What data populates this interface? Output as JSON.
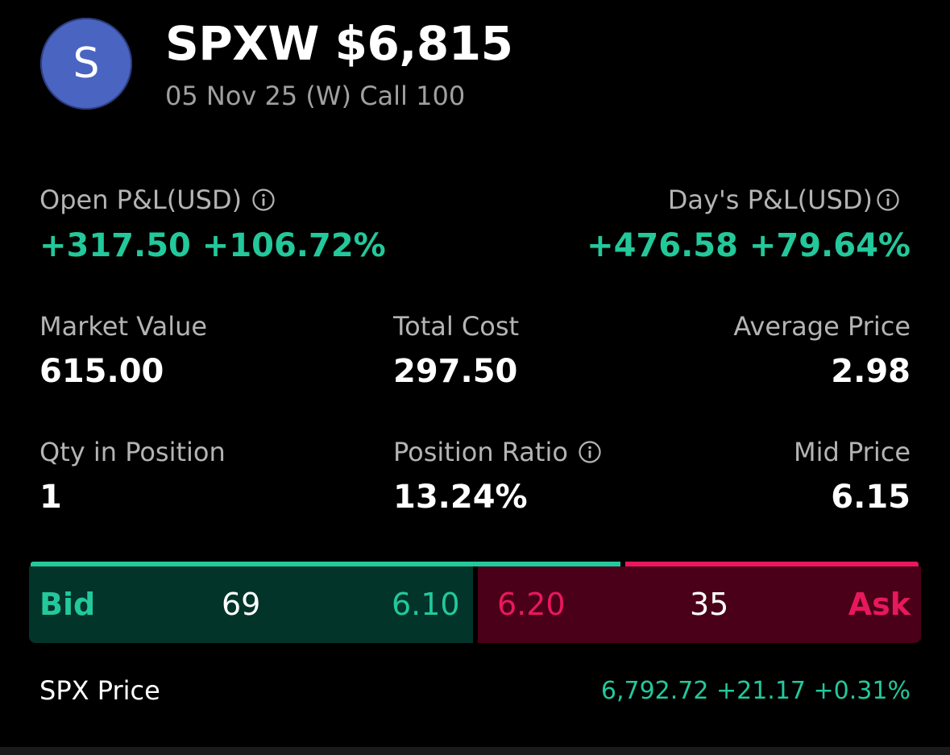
{
  "header": {
    "avatar_letter": "S",
    "title": "SPXW $6,815",
    "subtitle": "05 Nov 25 (W) Call 100"
  },
  "pnl": {
    "open_label": "Open P&L(USD)",
    "open_value": "+317.50 +106.72%",
    "day_label": "Day's P&L(USD)",
    "day_value": "+476.58 +79.64%"
  },
  "stats": {
    "market_value_label": "Market Value",
    "market_value": "615.00",
    "total_cost_label": "Total Cost",
    "total_cost": "297.50",
    "average_price_label": "Average Price",
    "average_price": "2.98",
    "qty_label": "Qty in Position",
    "qty": "1",
    "position_ratio_label": "Position Ratio",
    "position_ratio": "13.24%",
    "mid_price_label": "Mid Price",
    "mid_price": "6.15"
  },
  "bid_ask": {
    "bid_label": "Bid",
    "bid_size": "69",
    "bid_price": "6.10",
    "ask_price": "6.20",
    "ask_size": "35",
    "ask_label": "Ask",
    "bid_share": 0.664
  },
  "underlying": {
    "label": "SPX Price",
    "value": "6,792.72 +21.17 +0.31%"
  },
  "colors": {
    "positive": "#23c89b",
    "negative": "#e8185c",
    "avatar": "#4a64c2"
  },
  "icons": {
    "info": "info-circle-icon"
  }
}
